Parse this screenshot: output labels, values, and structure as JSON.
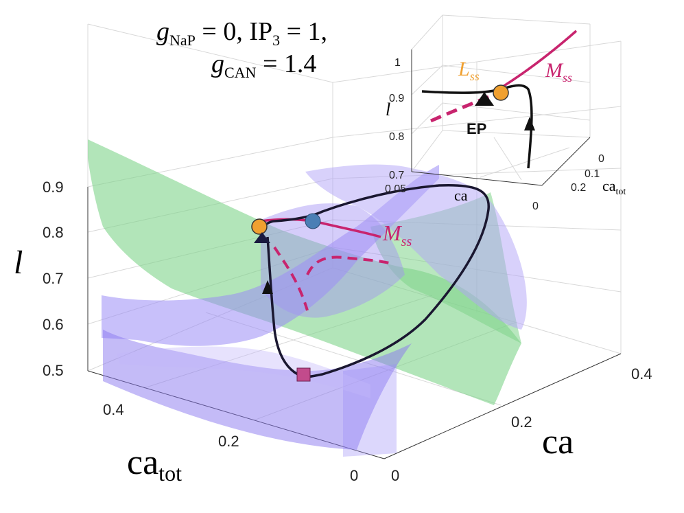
{
  "title": {
    "line1_sym": "g",
    "line1_sub": "NaP",
    "line1_mid": " = 0, IP",
    "line1_sub2": "3",
    "line1_end": " = 1,",
    "line2_sym": "g",
    "line2_sub": "CAN",
    "line2_end": " = 1.4"
  },
  "colors": {
    "green_surface": "#7fd48a",
    "purple_surface": "#9b8cf5",
    "manifold_curve": "#c8246e",
    "trajectory": "#111111",
    "marker_circle_orange": "#f0a030",
    "marker_circle_blue": "#4a7fb5",
    "marker_square": "#c24b8c",
    "marker_triangle": "#1a1a40",
    "inset_Lss_label": "#f0a030"
  },
  "chart_data": [
    {
      "type": "line",
      "dimensions": "3d",
      "xlabel_main": "ca",
      "xlabel_sub": "tot",
      "ylabel": "ca",
      "zlabel": "l",
      "x_axis": {
        "name": "ca_tot",
        "ticks": [
          0.4,
          0.2,
          0
        ],
        "tick_labels": [
          "0.4",
          "0.2",
          "0"
        ]
      },
      "y_axis": {
        "name": "ca",
        "ticks": [
          0,
          0.2,
          0.4
        ],
        "tick_labels": [
          "0",
          "0.2",
          "0.4"
        ]
      },
      "z_axis": {
        "name": "l",
        "range": [
          0.5,
          0.9
        ],
        "ticks": [
          0.9,
          0.8,
          0.7,
          0.6,
          0.5
        ],
        "tick_labels": [
          "0.9",
          "0.8",
          "0.7",
          "0.6",
          "0.5"
        ]
      },
      "series": [
        {
          "name": "M",
          "name_sub": "ss"
        }
      ],
      "legend": "none",
      "grid": true
    },
    {
      "type": "line",
      "dimensions": "3d",
      "inset": true,
      "location": "top-right",
      "xlabel": "ca",
      "ylabel_main": "ca",
      "ylabel_sub": "tot",
      "zlabel": "l",
      "z_axis": {
        "ticks": [
          1,
          0.9,
          0.8,
          0.7
        ],
        "tick_labels": [
          "1",
          "0.9",
          "0.8",
          "0.7"
        ]
      },
      "x_axis": {
        "ticks": [
          0.05,
          0
        ],
        "tick_labels": [
          "0.05",
          "0"
        ]
      },
      "y_axis": {
        "ticks": [
          0,
          0.1,
          0.2
        ],
        "tick_labels": [
          "0",
          "0.1",
          "0.2"
        ]
      },
      "series": [
        {
          "name": "L",
          "name_sub": "ss"
        },
        {
          "name": "M",
          "name_sub": "ss"
        }
      ],
      "annotations": [
        {
          "text": "EP"
        }
      ],
      "grid": true
    }
  ]
}
